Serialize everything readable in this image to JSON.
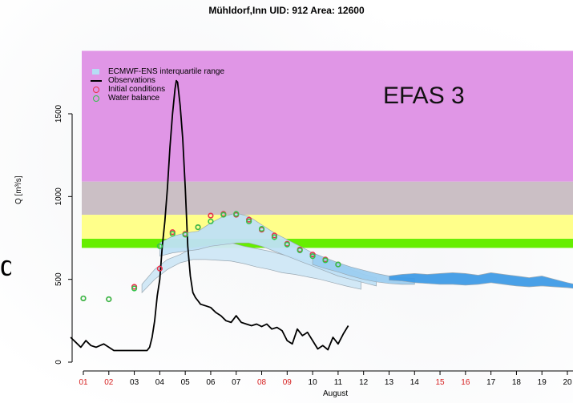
{
  "chart_data": {
    "type": "line",
    "title": "Mühldorf,Inn  UID: 912  Area: 12600",
    "xlabel": "August",
    "ylabel": "Q [m³/s]",
    "annotation": "EFAS 3",
    "cut_text": "d",
    "x_tick_labels": [
      "01",
      "02",
      "03",
      "04",
      "05",
      "06",
      "07",
      "08",
      "09",
      "10",
      "11",
      "12",
      "13",
      "14",
      "15",
      "16",
      "17",
      "18",
      "19",
      "20"
    ],
    "x_tick_colors": [
      "#d62020",
      "#d62020",
      "#000000",
      "#000000",
      "#000000",
      "#000000",
      "#000000",
      "#d62020",
      "#d62020",
      "#000000",
      "#000000",
      "#000000",
      "#000000",
      "#000000",
      "#d62020",
      "#d62020",
      "#000000",
      "#000000",
      "#000000",
      "#000000"
    ],
    "y_ticks": [
      0,
      500,
      1000,
      1500
    ],
    "xlim": [
      0.5,
      20.3
    ],
    "ylim": [
      0,
      1880
    ],
    "legend": [
      {
        "label": "ECMWF-ENS interquartile range",
        "symbol": "box",
        "color": "#b6dcf4"
      },
      {
        "label": "Observations",
        "symbol": "line",
        "color": "#000000"
      },
      {
        "label": "Initial conditions",
        "symbol": "circle",
        "color": "#e8304a"
      },
      {
        "label": "Water balance",
        "symbol": "circle",
        "color": "#33c24a"
      }
    ],
    "threshold_bands": [
      {
        "from": 1090,
        "to": 1880,
        "color": "#e096e6"
      },
      {
        "from": 890,
        "to": 1090,
        "color": "#cbbfc5"
      },
      {
        "from": 745,
        "to": 890,
        "color": "#ffff8a"
      },
      {
        "from": 690,
        "to": 745,
        "color": "#66ee00"
      }
    ],
    "observations": {
      "x": [
        0.5,
        0.7,
        0.9,
        1.1,
        1.3,
        1.5,
        1.8,
        2.0,
        2.2,
        2.6,
        3.0,
        3.3,
        3.5,
        3.6,
        3.7,
        3.8,
        3.9,
        4.0,
        4.1,
        4.2,
        4.3,
        4.4,
        4.5,
        4.6,
        4.65,
        4.7,
        4.8,
        4.9,
        5.0,
        5.1,
        5.2,
        5.3,
        5.4,
        5.5,
        5.6,
        5.7,
        5.8,
        6.0,
        6.2,
        6.4,
        6.6,
        6.8,
        7.0,
        7.2,
        7.4,
        7.6,
        7.8,
        8.0,
        8.2,
        8.4,
        8.6,
        8.8,
        9.0,
        9.2,
        9.4,
        9.6,
        9.8,
        10.0,
        10.2,
        10.4,
        10.6,
        10.8,
        11.0,
        11.2,
        11.4
      ],
      "y": [
        150,
        120,
        90,
        130,
        100,
        90,
        110,
        90,
        70,
        70,
        70,
        70,
        70,
        90,
        150,
        250,
        400,
        500,
        700,
        850,
        1050,
        1300,
        1500,
        1650,
        1700,
        1690,
        1550,
        1350,
        1050,
        700,
        520,
        420,
        390,
        370,
        350,
        345,
        340,
        330,
        300,
        280,
        250,
        240,
        280,
        240,
        230,
        220,
        230,
        215,
        230,
        200,
        210,
        190,
        130,
        110,
        200,
        160,
        180,
        130,
        80,
        100,
        75,
        150,
        110,
        170,
        220
      ]
    },
    "initial_conditions": {
      "x": [
        1.0,
        2.0,
        3.0,
        4.0,
        4.5,
        5.0,
        5.5,
        6.0,
        6.5,
        7.0,
        7.5,
        8.0,
        8.5,
        9.0,
        9.5,
        10.0,
        10.5,
        11.0
      ],
      "y": [
        385,
        380,
        455,
        565,
        785,
        775,
        815,
        885,
        895,
        890,
        860,
        800,
        765,
        715,
        680,
        650,
        620,
        590
      ]
    },
    "water_balance": {
      "x": [
        1.0,
        2.0,
        3.0,
        4.0,
        4.5,
        5.0,
        5.5,
        6.0,
        6.5,
        7.0,
        7.5,
        8.0,
        8.5,
        9.0,
        9.5,
        10.0,
        10.5,
        11.0
      ],
      "y": [
        385,
        380,
        445,
        700,
        775,
        770,
        815,
        850,
        890,
        895,
        850,
        805,
        755,
        710,
        675,
        640,
        615,
        590
      ]
    },
    "ensemble_bands": [
      {
        "color": "#cfe7f6",
        "x": [
          3.3,
          3.8,
          4.3,
          4.8,
          5.3,
          5.8,
          6.3,
          6.8,
          7.3,
          7.8,
          8.3,
          8.8,
          9.3,
          9.8,
          10.3,
          10.8,
          11.3,
          11.9
        ],
        "lower": [
          420,
          500,
          560,
          600,
          620,
          620,
          615,
          610,
          595,
          575,
          560,
          540,
          530,
          515,
          500,
          480,
          460,
          440
        ],
        "upper": [
          470,
          560,
          620,
          650,
          690,
          700,
          710,
          720,
          700,
          685,
          670,
          650,
          630,
          610,
          590,
          570,
          550,
          520
        ]
      },
      {
        "color": "#bfe0f5",
        "x": [
          4.0,
          4.5,
          5.0,
          5.5,
          6.0,
          6.5,
          7.0,
          7.5,
          8.0,
          8.5,
          9.0,
          9.5,
          10.0,
          10.5,
          11.0,
          11.5,
          12.0,
          12.5
        ],
        "lower": [
          640,
          660,
          670,
          680,
          700,
          710,
          720,
          720,
          700,
          670,
          640,
          610,
          580,
          550,
          520,
          500,
          480,
          460
        ],
        "upper": [
          720,
          760,
          780,
          790,
          840,
          880,
          900,
          880,
          830,
          780,
          740,
          700,
          660,
          620,
          590,
          560,
          530,
          510
        ]
      },
      {
        "color": "#9ccdf0",
        "x": [
          10.0,
          10.5,
          11.0,
          11.5,
          12.0,
          12.5,
          13.0,
          13.5,
          14.0
        ],
        "lower": [
          590,
          565,
          545,
          520,
          500,
          485,
          475,
          470,
          470
        ],
        "upper": [
          660,
          630,
          600,
          575,
          555,
          535,
          520,
          510,
          505
        ]
      },
      {
        "color": "#3f9be6",
        "x": [
          13.0,
          13.5,
          14.0,
          14.5,
          15.0,
          15.5,
          16.0,
          16.5,
          17.0,
          17.5,
          18.0,
          18.5,
          19.0,
          19.5,
          20.0,
          20.3
        ],
        "lower": [
          495,
          490,
          480,
          475,
          470,
          470,
          465,
          470,
          480,
          470,
          460,
          455,
          460,
          455,
          450,
          445
        ],
        "upper": [
          520,
          530,
          535,
          530,
          535,
          540,
          535,
          525,
          540,
          530,
          520,
          510,
          520,
          500,
          480,
          470
        ]
      }
    ]
  }
}
